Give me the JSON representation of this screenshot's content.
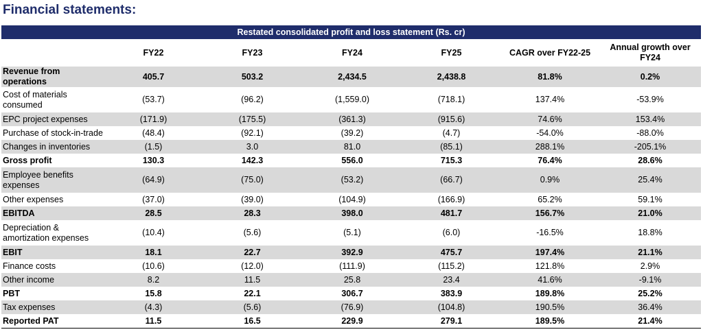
{
  "heading": "Financial statements:",
  "table": {
    "title": "Restated consolidated profit and loss statement (Rs. cr)",
    "columns": [
      "FY22",
      "FY23",
      "FY24",
      "FY25",
      "CAGR over FY22-25",
      "Annual growth over FY24"
    ],
    "rows": [
      {
        "label": "Revenue from operations",
        "values": [
          "405.7",
          "503.2",
          "2,434.5",
          "2,438.8",
          "81.8%",
          "0.2%"
        ],
        "bold": true,
        "shade": true,
        "tall": false
      },
      {
        "label": "Cost of materials consumed",
        "values": [
          "(53.7)",
          "(96.2)",
          "(1,559.0)",
          "(718.1)",
          "137.4%",
          "-53.9%"
        ],
        "bold": false,
        "shade": false,
        "tall": true
      },
      {
        "label": "EPC project expenses",
        "values": [
          "(171.9)",
          "(175.5)",
          "(361.3)",
          "(915.6)",
          "74.6%",
          "153.4%"
        ],
        "bold": false,
        "shade": true,
        "tall": false
      },
      {
        "label": "Purchase of stock-in-trade",
        "values": [
          "(48.4)",
          "(92.1)",
          "(39.2)",
          "(4.7)",
          "-54.0%",
          "-88.0%"
        ],
        "bold": false,
        "shade": false,
        "tall": false
      },
      {
        "label": "Changes in inventories",
        "values": [
          "(1.5)",
          "3.0",
          "81.0",
          "(85.1)",
          "288.1%",
          "-205.1%"
        ],
        "bold": false,
        "shade": true,
        "tall": false
      },
      {
        "label": "Gross profit",
        "values": [
          "130.3",
          "142.3",
          "556.0",
          "715.3",
          "76.4%",
          "28.6%"
        ],
        "bold": true,
        "shade": false,
        "tall": false
      },
      {
        "label": "Employee benefits expenses",
        "values": [
          "(64.9)",
          "(75.0)",
          "(53.2)",
          "(66.7)",
          "0.9%",
          "25.4%"
        ],
        "bold": false,
        "shade": true,
        "tall": true
      },
      {
        "label": "Other expenses",
        "values": [
          "(37.0)",
          "(39.0)",
          "(104.9)",
          "(166.9)",
          "65.2%",
          "59.1%"
        ],
        "bold": false,
        "shade": false,
        "tall": false
      },
      {
        "label": "EBITDA",
        "values": [
          "28.5",
          "28.3",
          "398.0",
          "481.7",
          "156.7%",
          "21.0%"
        ],
        "bold": true,
        "shade": true,
        "tall": false
      },
      {
        "label": "Depreciation & amortization expenses",
        "values": [
          "(10.4)",
          "(5.6)",
          "(5.1)",
          "(6.0)",
          "-16.5%",
          "18.8%"
        ],
        "bold": false,
        "shade": false,
        "tall": true
      },
      {
        "label": "EBIT",
        "values": [
          "18.1",
          "22.7",
          "392.9",
          "475.7",
          "197.4%",
          "21.1%"
        ],
        "bold": true,
        "shade": true,
        "tall": false
      },
      {
        "label": "Finance costs",
        "values": [
          "(10.6)",
          "(12.0)",
          "(111.9)",
          "(115.2)",
          "121.8%",
          "2.9%"
        ],
        "bold": false,
        "shade": false,
        "tall": false
      },
      {
        "label": "Other income",
        "values": [
          "8.2",
          "11.5",
          "25.8",
          "23.4",
          "41.6%",
          "-9.1%"
        ],
        "bold": false,
        "shade": true,
        "tall": false
      },
      {
        "label": "PBT",
        "values": [
          "15.8",
          "22.1",
          "306.7",
          "383.9",
          "189.8%",
          "25.2%"
        ],
        "bold": true,
        "shade": false,
        "tall": false
      },
      {
        "label": "Tax expenses",
        "values": [
          "(4.3)",
          "(5.6)",
          "(76.9)",
          "(104.8)",
          "190.5%",
          "36.4%"
        ],
        "bold": false,
        "shade": true,
        "tall": false
      },
      {
        "label": "Reported PAT",
        "values": [
          "11.5",
          "16.5",
          "229.9",
          "279.1",
          "189.5%",
          "21.4%"
        ],
        "bold": true,
        "shade": false,
        "tall": false
      }
    ]
  },
  "colors": {
    "banner": "#1f2d6b",
    "heading": "#1f2d6b",
    "shade": "#d9d9d9"
  }
}
